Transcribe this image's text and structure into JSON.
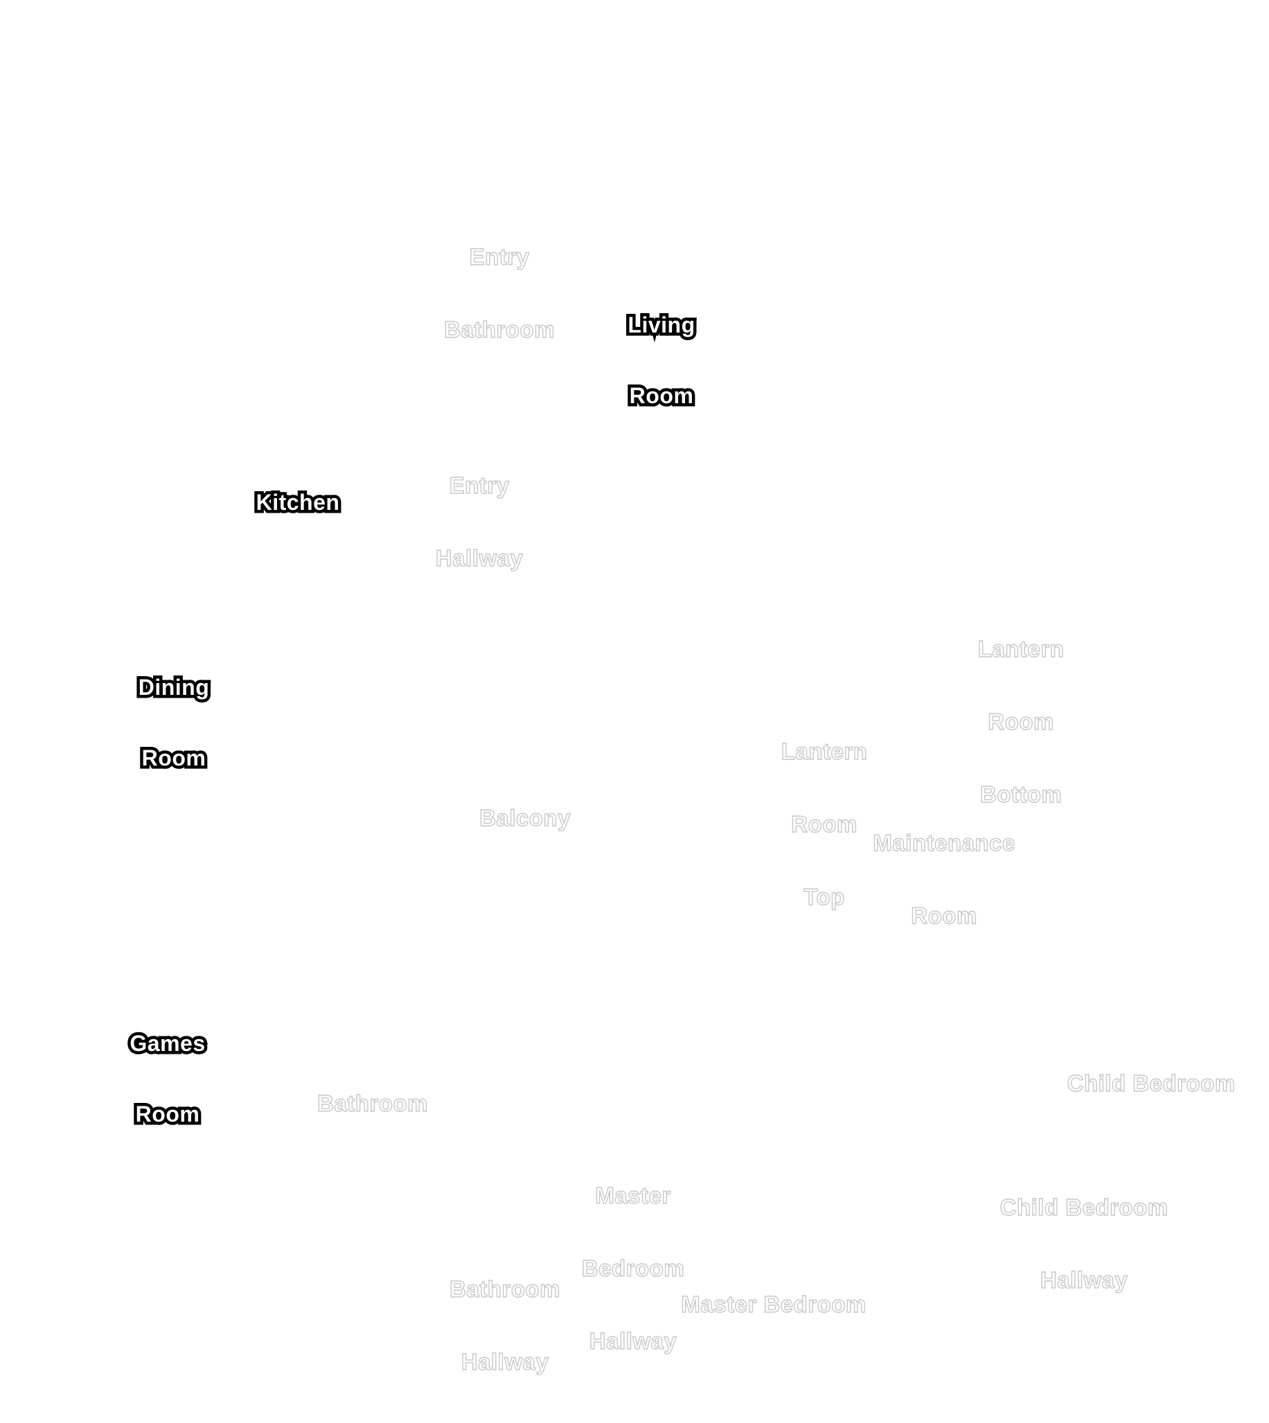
{
  "map": {
    "background": "#ffffff",
    "active_fill": "#ffffff",
    "active_outline": "#000000",
    "inactive_outline": "#c8c8c8"
  },
  "rooms": [
    {
      "id": "entry-bathroom",
      "lines": [
        "Entry",
        "Bathroom"
      ],
      "discovered": false
    },
    {
      "id": "living-room",
      "lines": [
        "Living",
        "Room"
      ],
      "discovered": true
    },
    {
      "id": "kitchen",
      "lines": [
        "Kitchen"
      ],
      "discovered": true
    },
    {
      "id": "entry-hallway",
      "lines": [
        "Entry",
        "Hallway"
      ],
      "discovered": false
    },
    {
      "id": "lantern-room-bottom",
      "lines": [
        "Lantern",
        "Room",
        "Bottom"
      ],
      "discovered": false
    },
    {
      "id": "dining-room",
      "lines": [
        "Dining",
        "Room"
      ],
      "discovered": true
    },
    {
      "id": "lantern-room-top",
      "lines": [
        "Lantern",
        "Room",
        "Top"
      ],
      "discovered": false
    },
    {
      "id": "balcony",
      "lines": [
        "Balcony"
      ],
      "discovered": false
    },
    {
      "id": "maintenance-room",
      "lines": [
        "Maintenance",
        "Room"
      ],
      "discovered": false
    },
    {
      "id": "games-room",
      "lines": [
        "Games",
        "Room"
      ],
      "discovered": true
    },
    {
      "id": "child-bedroom",
      "lines": [
        "Child Bedroom"
      ],
      "discovered": false
    },
    {
      "id": "bathroom",
      "lines": [
        "Bathroom"
      ],
      "discovered": false
    },
    {
      "id": "master-bedroom-hallway",
      "lines": [
        "Master",
        "Bedroom",
        "Hallway"
      ],
      "discovered": false
    },
    {
      "id": "child-bedroom-hallway",
      "lines": [
        "Child Bedroom",
        "Hallway"
      ],
      "discovered": false
    },
    {
      "id": "bathroom-hallway",
      "lines": [
        "Bathroom",
        "Hallway"
      ],
      "discovered": false
    },
    {
      "id": "master-bedroom",
      "lines": [
        "Master Bedroom"
      ],
      "discovered": false
    }
  ]
}
